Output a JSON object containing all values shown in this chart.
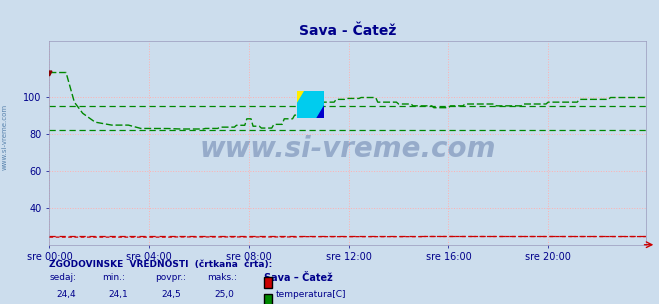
{
  "title": "Sava - Čatež",
  "bg_color": "#ccdded",
  "plot_bg_color": "#ccdded",
  "grid_color": "#ffb0b0",
  "ylim": [
    20,
    130
  ],
  "yticks": [
    40,
    60,
    80,
    100
  ],
  "xtick_labels": [
    "sre 00:00",
    "sre 04:00",
    "sre 08:00",
    "sre 12:00",
    "sre 16:00",
    "sre 20:00"
  ],
  "xtick_positions": [
    0,
    48,
    96,
    144,
    192,
    240
  ],
  "total_points": 288,
  "title_color": "#00008b",
  "tick_color": "#00008b",
  "watermark": "www.si-vreme.com",
  "watermark_color": "#1a3a7a",
  "temp_color": "#cc0000",
  "flow_color": "#008800",
  "flow_hist_min": 82.2,
  "flow_hist_avg": 95.1,
  "temp_hist_avg": 24.5,
  "temp_sedaj": 24.4,
  "temp_min": 24.1,
  "temp_povpr": 24.5,
  "temp_maks": 25.0,
  "flow_sedaj": 98.4,
  "flow_min": 82.2,
  "flow_povpr": 95.1,
  "flow_maks": 113.7,
  "sidebar_text": "www.si-vreme.com",
  "label_color": "#00008b"
}
